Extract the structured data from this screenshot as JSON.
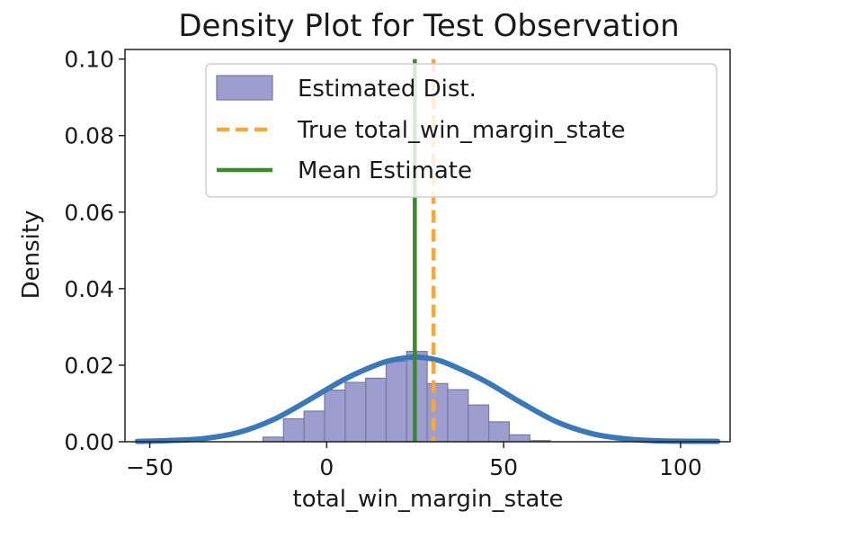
{
  "chart_data": {
    "type": "histogram",
    "title": "Density Plot for Test Observation",
    "xlabel": "total_win_margin_state",
    "ylabel": "Density",
    "xlim": [
      -57,
      114
    ],
    "ylim": [
      0,
      0.1025
    ],
    "x_ticks": [
      -50,
      0,
      50,
      100
    ],
    "x_tick_labels": [
      "−50",
      "0",
      "50",
      "100"
    ],
    "y_ticks": [
      0,
      0.02,
      0.04,
      0.06,
      0.08,
      0.1
    ],
    "y_tick_labels": [
      "0.00",
      "0.02",
      "0.04",
      "0.06",
      "0.08",
      "0.10"
    ],
    "grid": false,
    "legend_position": "upper-right",
    "histogram": {
      "name": "Estimated Dist.",
      "color": "#8c8cc8",
      "edge_color": "#7a7a9a",
      "bin_width": 5.8,
      "bin_starts": [
        -18,
        -12.2,
        -6.4,
        -0.6,
        5.2,
        11,
        16.8,
        22.6,
        28.4,
        34.2,
        40,
        45.8,
        51.6,
        57.4
      ],
      "densities": [
        0.0012,
        0.006,
        0.008,
        0.0135,
        0.0155,
        0.0166,
        0.021,
        0.0236,
        0.0152,
        0.0136,
        0.0096,
        0.0052,
        0.0018,
        0.0003
      ]
    },
    "kde": {
      "color": "#3a78b8",
      "x": [
        -53.5,
        -45,
        -35,
        -25,
        -15,
        -5,
        5,
        15,
        20,
        25,
        30,
        35,
        45,
        55,
        65,
        75,
        85,
        95,
        110.5
      ],
      "y": [
        0.0001,
        0.0003,
        0.0008,
        0.0024,
        0.0058,
        0.0109,
        0.0163,
        0.0204,
        0.0216,
        0.0221,
        0.0216,
        0.0201,
        0.0157,
        0.0102,
        0.0052,
        0.0021,
        0.0007,
        0.0002,
        0.0001
      ]
    },
    "true_value": {
      "name": "True total_win_margin_state",
      "x": 30.2,
      "color": "#f5a83c"
    },
    "mean_estimate": {
      "name": "Mean Estimate",
      "x": 24.9,
      "color": "#3a8a2a"
    }
  }
}
